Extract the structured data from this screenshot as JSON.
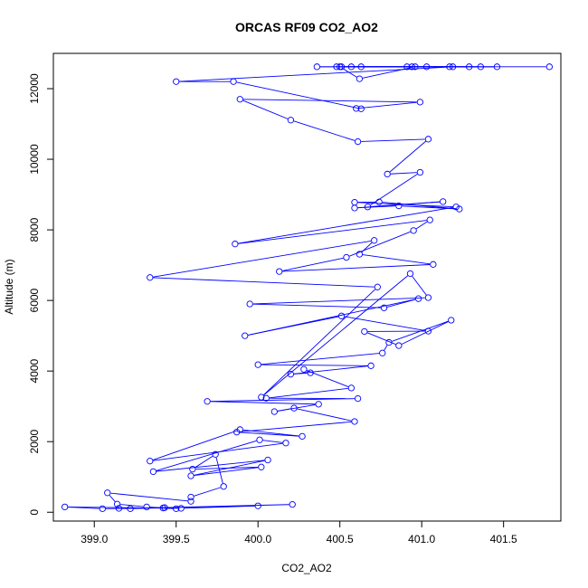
{
  "chart_data": {
    "type": "line",
    "title": "ORCAS RF09 CO2_AO2",
    "xlabel": "CO2_AO2",
    "ylabel": "Altitude (m)",
    "xlim": [
      398.75,
      401.85
    ],
    "ylim": [
      -250,
      13000
    ],
    "xticks": [
      399.0,
      399.5,
      400.0,
      400.5,
      401.0,
      401.5
    ],
    "xtick_labels": [
      "399.0",
      "399.5",
      "400.0",
      "400.5",
      "401.0",
      "401.5"
    ],
    "yticks": [
      0,
      2000,
      4000,
      6000,
      8000,
      10000,
      12000
    ],
    "ytick_labels": [
      "0",
      "2000",
      "4000",
      "6000",
      "8000",
      "10000",
      "12000"
    ],
    "grid": false,
    "series": [
      {
        "line_color": "#0000ff",
        "marker": "open-circle",
        "x": [
          401.78,
          400.57,
          401.29,
          400.51,
          400.94,
          400.63,
          400.36,
          400.91,
          401.17,
          401.46,
          400.48,
          401.36,
          401.03,
          400.96,
          400.62,
          400.5,
          401.19,
          399.5,
          399.85,
          400.63,
          400.6,
          400.99,
          399.89,
          400.2,
          400.61,
          401.04,
          400.79,
          400.99,
          400.67,
          401.13,
          400.59,
          400.86,
          401.23,
          400.74,
          400.59,
          401.21,
          399.86,
          401.05,
          400.95,
          400.54,
          400.13,
          401.07,
          400.62,
          400.71,
          399.34,
          400.73,
          400.02,
          400.93,
          401.04,
          399.95,
          400.77,
          400.98,
          399.92,
          400.51,
          401.04,
          400.65,
          400.86,
          401.18,
          400.8,
          400.76,
          400.0,
          400.69,
          400.2,
          400.32,
          400.28,
          400.57,
          400.05,
          400.61,
          399.69,
          400.37,
          400.1,
          400.22,
          400.59,
          399.87,
          400.27,
          399.89,
          399.34,
          400.17,
          400.01,
          399.36,
          400.06,
          399.59,
          400.02,
          399.6,
          399.74,
          399.79,
          399.59,
          399.59,
          399.08,
          399.14,
          399.32,
          399.5,
          399.42,
          399.05,
          398.82,
          399.53,
          400.0,
          399.15,
          399.22,
          399.43,
          400.21
        ],
        "y": [
          12620,
          12620,
          12620,
          12620,
          12620,
          12620,
          12620,
          12620,
          12620,
          12620,
          12620,
          12620,
          12620,
          12620,
          12280,
          12620,
          12620,
          12200,
          12200,
          11430,
          11440,
          11620,
          11700,
          11110,
          10500,
          10570,
          9580,
          9630,
          8650,
          8800,
          8620,
          8680,
          8590,
          8790,
          8780,
          8650,
          7600,
          8280,
          7980,
          7220,
          6820,
          7020,
          7310,
          7700,
          6650,
          6380,
          3260,
          6760,
          6080,
          5900,
          5790,
          6050,
          5000,
          5560,
          5130,
          5120,
          4720,
          5440,
          4810,
          4510,
          4180,
          4150,
          3910,
          3950,
          4050,
          3520,
          3230,
          3220,
          3140,
          3060,
          2850,
          2950,
          2570,
          2270,
          2150,
          2340,
          1450,
          1960,
          2050,
          1150,
          1480,
          1030,
          1280,
          1220,
          1640,
          730,
          430,
          310,
          550,
          230,
          150,
          100,
          120,
          100,
          150,
          110,
          180,
          110,
          100,
          130,
          220
        ]
      }
    ]
  }
}
